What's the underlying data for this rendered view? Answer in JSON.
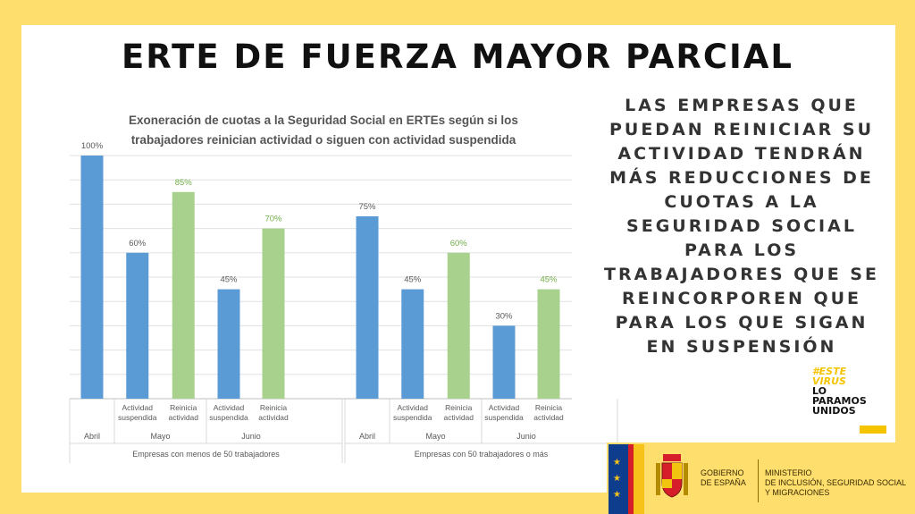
{
  "header": {
    "title": "ERTE DE FUERZA MAYOR PARCIAL"
  },
  "chart_data": {
    "type": "bar",
    "title_line1": "Exoneración de cuotas a la Seguridad Social en ERTEs según si los",
    "title_line2": "trabajadores  reinician actividad  o siguen con actividad suspendida",
    "ylim": [
      0,
      100
    ],
    "grid": true,
    "colors": {
      "suspendida": "#5b9bd5",
      "reinicia": "#a9d18e",
      "label_reinicia": "#70ad47",
      "label_default": "#595959"
    },
    "groups": [
      {
        "name": "Empresas con menos de 50 trabajadores",
        "months": [
          {
            "name": "Abril",
            "bars": [
              {
                "label": "",
                "value": 100,
                "kind": "suspendida",
                "value_label": "100%"
              }
            ]
          },
          {
            "name": "Mayo",
            "bars": [
              {
                "label": "Actividad suspendida",
                "value": 60,
                "kind": "suspendida",
                "value_label": "60%"
              },
              {
                "label": "Reinicia actividad",
                "value": 85,
                "kind": "reinicia",
                "value_label": "85%"
              }
            ]
          },
          {
            "name": "Junio",
            "bars": [
              {
                "label": "Actividad suspendida",
                "value": 45,
                "kind": "suspendida",
                "value_label": "45%"
              },
              {
                "label": "Reinicia actividad",
                "value": 70,
                "kind": "reinicia",
                "value_label": "70%"
              }
            ]
          }
        ]
      },
      {
        "name": "Empresas con 50 trabajadores o más",
        "months": [
          {
            "name": "Abril",
            "bars": [
              {
                "label": "",
                "value": 75,
                "kind": "suspendida",
                "value_label": "75%"
              }
            ]
          },
          {
            "name": "Mayo",
            "bars": [
              {
                "label": "Actividad suspendida",
                "value": 45,
                "kind": "suspendida",
                "value_label": "45%"
              },
              {
                "label": "Reinicia actividad",
                "value": 60,
                "kind": "reinicia",
                "value_label": "60%"
              }
            ]
          },
          {
            "name": "Junio",
            "bars": [
              {
                "label": "Actividad suspendida",
                "value": 30,
                "kind": "suspendida",
                "value_label": "30%"
              },
              {
                "label": "Reinicia actividad",
                "value": 45,
                "kind": "reinicia",
                "value_label": "45%"
              }
            ]
          }
        ]
      }
    ]
  },
  "side_text": {
    "lines": [
      "LAS EMPRESAS QUE",
      "PUEDAN REINICIAR SU",
      "ACTIVIDAD TENDRÁN",
      "MÁS REDUCCIONES DE",
      "CUOTAS A LA",
      "SEGURIDAD SOCIAL",
      "PARA LOS",
      "TRABAJADORES QUE SE",
      "REINCORPOREN QUE",
      "PARA LOS QUE SIGAN",
      "EN SUSPENSIÓN"
    ]
  },
  "campaign_logo": {
    "line1": "#ESTE",
    "line2": "VIRUS",
    "line3": "LO",
    "line4": "PARAMOS",
    "line5": "UNIDOS"
  },
  "government": {
    "gov_line1": "GOBIERNO",
    "gov_line2": "DE ESPAÑA",
    "ministry_line1": "MINISTERIO",
    "ministry_line2": "DE INCLUSIÓN, SEGURIDAD SOCIAL",
    "ministry_line3": "Y MIGRACIONES"
  }
}
